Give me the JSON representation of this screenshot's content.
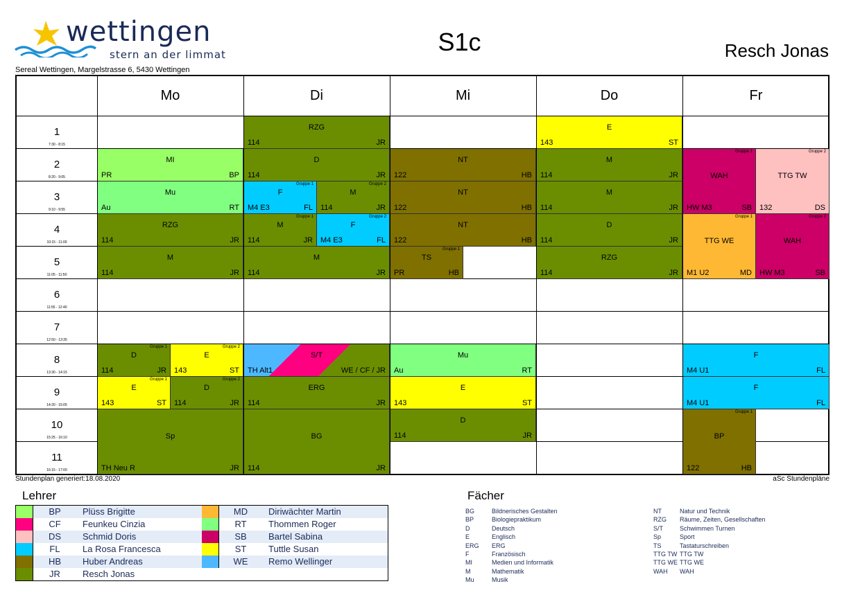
{
  "header": {
    "logo_word": "wettingen",
    "logo_tagline": "stern an der limmat",
    "address": "Sereal Wettingen, Margelstrasse 6, 5430 Wettingen",
    "class_title": "S1c",
    "teacher_name": "Resch Jonas"
  },
  "colors": {
    "dark_green": "#6b8e00",
    "light_green": "#99ff66",
    "mint_green": "#80ff80",
    "olive": "#807000",
    "yellow": "#ffff00",
    "cyan": "#00ccff",
    "magenta": "#cc0066",
    "pink": "#ffc0c0",
    "orange": "#ffb833",
    "sky": "#4db8ff"
  },
  "days": [
    "Mo",
    "Di",
    "Mi",
    "Do",
    "Fr"
  ],
  "periods": [
    {
      "num": "1",
      "time": "7:30 - 8:15"
    },
    {
      "num": "2",
      "time": "8:20 - 9:05"
    },
    {
      "num": "3",
      "time": "9:10 - 9:55"
    },
    {
      "num": "4",
      "time": "10:15 - 11:00"
    },
    {
      "num": "5",
      "time": "11:05 - 11:50"
    },
    {
      "num": "6",
      "time": "11:55 - 12:40"
    },
    {
      "num": "7",
      "time": "12:50 - 13:35"
    },
    {
      "num": "8",
      "time": "13:30 - 14:15"
    },
    {
      "num": "9",
      "time": "14:20 - 15:05"
    },
    {
      "num": "10",
      "time": "15:25 - 16:10"
    },
    {
      "num": "11",
      "time": "16:15 - 17:00"
    }
  ],
  "lessons": [
    {
      "day": 0,
      "p": 1,
      "span": 1,
      "half": "full",
      "subject": "MI",
      "room": "PR",
      "teacher": "BP",
      "color": "#99ff66",
      "group": ""
    },
    {
      "day": 0,
      "p": 2,
      "span": 1,
      "half": "full",
      "subject": "Mu",
      "room": "Au",
      "teacher": "RT",
      "color": "#80ff80",
      "group": ""
    },
    {
      "day": 0,
      "p": 3,
      "span": 1,
      "half": "full",
      "subject": "RZG",
      "room": "114",
      "teacher": "JR",
      "color": "#6b8e00",
      "group": ""
    },
    {
      "day": 0,
      "p": 4,
      "span": 1,
      "half": "full",
      "subject": "M",
      "room": "114",
      "teacher": "JR",
      "color": "#6b8e00",
      "group": ""
    },
    {
      "day": 0,
      "p": 7,
      "span": 1,
      "half": "left",
      "subject": "D",
      "room": "114",
      "teacher": "JR",
      "color": "#6b8e00",
      "group": "Gruppe 1"
    },
    {
      "day": 0,
      "p": 7,
      "span": 1,
      "half": "right",
      "subject": "E",
      "room": "143",
      "teacher": "ST",
      "color": "#ffff00",
      "group": "Gruppe 2"
    },
    {
      "day": 0,
      "p": 8,
      "span": 1,
      "half": "left",
      "subject": "E",
      "room": "143",
      "teacher": "ST",
      "color": "#ffff00",
      "group": "Gruppe 1"
    },
    {
      "day": 0,
      "p": 8,
      "span": 1,
      "half": "right",
      "subject": "D",
      "room": "114",
      "teacher": "JR",
      "color": "#6b8e00",
      "group": "Gruppe 2"
    },
    {
      "day": 0,
      "p": 9,
      "span": 2,
      "half": "full",
      "subject": "Sp",
      "room": "TH Neu R",
      "teacher": "JR",
      "color": "#6b8e00",
      "group": ""
    },
    {
      "day": 1,
      "p": 0,
      "span": 1,
      "half": "full",
      "subject": "RZG",
      "room": "114",
      "teacher": "JR",
      "color": "#6b8e00",
      "group": ""
    },
    {
      "day": 1,
      "p": 1,
      "span": 1,
      "half": "full",
      "subject": "D",
      "room": "114",
      "teacher": "JR",
      "color": "#6b8e00",
      "group": ""
    },
    {
      "day": 1,
      "p": 2,
      "span": 1,
      "half": "left",
      "subject": "F",
      "room": "M4 E3",
      "teacher": "FL",
      "color": "#00ccff",
      "group": "Gruppe 1"
    },
    {
      "day": 1,
      "p": 2,
      "span": 1,
      "half": "right",
      "subject": "M",
      "room": "114",
      "teacher": "JR",
      "color": "#6b8e00",
      "group": "Gruppe 2"
    },
    {
      "day": 1,
      "p": 3,
      "span": 1,
      "half": "left",
      "subject": "M",
      "room": "114",
      "teacher": "JR",
      "color": "#6b8e00",
      "group": "Gruppe 1"
    },
    {
      "day": 1,
      "p": 3,
      "span": 1,
      "half": "right",
      "subject": "F",
      "room": "M4 E3",
      "teacher": "FL",
      "color": "#00ccff",
      "group": "Gruppe 2"
    },
    {
      "day": 1,
      "p": 4,
      "span": 1,
      "half": "full",
      "subject": "M",
      "room": "114",
      "teacher": "JR",
      "color": "#6b8e00",
      "group": ""
    },
    {
      "day": 1,
      "p": 7,
      "span": 1,
      "half": "full",
      "subject": "S/T",
      "room": "TH Alt1",
      "teacher": "WE / CF / JR",
      "color": "stripe",
      "group": ""
    },
    {
      "day": 1,
      "p": 8,
      "span": 1,
      "half": "full",
      "subject": "ERG",
      "room": "114",
      "teacher": "JR",
      "color": "#6b8e00",
      "group": ""
    },
    {
      "day": 1,
      "p": 9,
      "span": 2,
      "half": "full",
      "subject": "BG",
      "room": "114",
      "teacher": "JR",
      "color": "#6b8e00",
      "group": ""
    },
    {
      "day": 2,
      "p": 1,
      "span": 1,
      "half": "full",
      "subject": "NT",
      "room": "122",
      "teacher": "HB",
      "color": "#807000",
      "group": ""
    },
    {
      "day": 2,
      "p": 2,
      "span": 1,
      "half": "full",
      "subject": "NT",
      "room": "122",
      "teacher": "HB",
      "color": "#807000",
      "group": ""
    },
    {
      "day": 2,
      "p": 3,
      "span": 1,
      "half": "full",
      "subject": "NT",
      "room": "122",
      "teacher": "HB",
      "color": "#807000",
      "group": ""
    },
    {
      "day": 2,
      "p": 4,
      "span": 1,
      "half": "left",
      "subject": "TS",
      "room": "PR",
      "teacher": "HB",
      "color": "#807000",
      "group": "Gruppe 1"
    },
    {
      "day": 2,
      "p": 7,
      "span": 1,
      "half": "full",
      "subject": "Mu",
      "room": "Au",
      "teacher": "RT",
      "color": "#80ff80",
      "group": ""
    },
    {
      "day": 2,
      "p": 8,
      "span": 1,
      "half": "full",
      "subject": "E",
      "room": "143",
      "teacher": "ST",
      "color": "#ffff00",
      "group": ""
    },
    {
      "day": 2,
      "p": 9,
      "span": 1,
      "half": "full",
      "subject": "D",
      "room": "114",
      "teacher": "JR",
      "color": "#6b8e00",
      "group": ""
    },
    {
      "day": 3,
      "p": 0,
      "span": 1,
      "half": "full",
      "subject": "E",
      "room": "143",
      "teacher": "ST",
      "color": "#ffff00",
      "group": ""
    },
    {
      "day": 3,
      "p": 1,
      "span": 1,
      "half": "full",
      "subject": "M",
      "room": "114",
      "teacher": "JR",
      "color": "#6b8e00",
      "group": ""
    },
    {
      "day": 3,
      "p": 2,
      "span": 1,
      "half": "full",
      "subject": "M",
      "room": "114",
      "teacher": "JR",
      "color": "#6b8e00",
      "group": ""
    },
    {
      "day": 3,
      "p": 3,
      "span": 1,
      "half": "full",
      "subject": "D",
      "room": "114",
      "teacher": "JR",
      "color": "#6b8e00",
      "group": ""
    },
    {
      "day": 3,
      "p": 4,
      "span": 1,
      "half": "full",
      "subject": "RZG",
      "room": "114",
      "teacher": "JR",
      "color": "#6b8e00",
      "group": ""
    },
    {
      "day": 4,
      "p": 1,
      "span": 2,
      "half": "left",
      "subject": "WAH",
      "room": "HW M3",
      "teacher": "SB",
      "color": "#cc0066",
      "group": "Gruppe 1"
    },
    {
      "day": 4,
      "p": 1,
      "span": 2,
      "half": "right",
      "subject": "TTG TW",
      "room": "132",
      "teacher": "DS",
      "color": "#ffc0c0",
      "group": "Gruppe 2"
    },
    {
      "day": 4,
      "p": 3,
      "span": 2,
      "half": "left",
      "subject": "TTG WE",
      "room": "M1 U2",
      "teacher": "MD",
      "color": "#ffb833",
      "group": "Gruppe 1"
    },
    {
      "day": 4,
      "p": 3,
      "span": 2,
      "half": "right",
      "subject": "WAH",
      "room": "HW M3",
      "teacher": "SB",
      "color": "#cc0066",
      "group": "Gruppe 2"
    },
    {
      "day": 4,
      "p": 7,
      "span": 1,
      "half": "full",
      "subject": "F",
      "room": "M4 U1",
      "teacher": "FL",
      "color": "#00ccff",
      "group": ""
    },
    {
      "day": 4,
      "p": 8,
      "span": 1,
      "half": "full",
      "subject": "F",
      "room": "M4 U1",
      "teacher": "FL",
      "color": "#00ccff",
      "group": ""
    },
    {
      "day": 4,
      "p": 9,
      "span": 2,
      "half": "left",
      "subject": "BP",
      "room": "122",
      "teacher": "HB",
      "color": "#807000",
      "group": "Gruppe 1"
    }
  ],
  "footer": {
    "generated": "Stundenplan generiert:18.08.2020",
    "brand": "aSc Stundenpläne"
  },
  "legend": {
    "title": "Lehrer",
    "teachers": [
      {
        "code": "BP",
        "name": "Plüss Brigitte",
        "color": "#99ff66"
      },
      {
        "code": "CF",
        "name": "Feunkeu Cinzia",
        "color": "#ff0080"
      },
      {
        "code": "DS",
        "name": "Schmid Doris",
        "color": "#ffc0c0"
      },
      {
        "code": "FL",
        "name": "La Rosa Francesca",
        "color": "#00ccff"
      },
      {
        "code": "HB",
        "name": "Huber Andreas",
        "color": "#807000"
      },
      {
        "code": "JR",
        "name": "Resch Jonas",
        "color": "#6b8e00"
      },
      {
        "code": "MD",
        "name": "Diriwächter Martin",
        "color": "#ffb833"
      },
      {
        "code": "RT",
        "name": "Thommen Roger",
        "color": "#80ff80"
      },
      {
        "code": "SB",
        "name": "Bartel Sabina",
        "color": "#cc0066"
      },
      {
        "code": "ST",
        "name": "Tuttle Susan",
        "color": "#ffff00"
      },
      {
        "code": "WE",
        "name": "Remo Wellinger",
        "color": "#4db8ff"
      }
    ]
  },
  "subjects": {
    "title": "Fächer",
    "items": [
      {
        "code": "BG",
        "name": "Bildnerisches Gestalten"
      },
      {
        "code": "BP",
        "name": "Biologiepraktikum"
      },
      {
        "code": "D",
        "name": "Deutsch"
      },
      {
        "code": "E",
        "name": "Englisch"
      },
      {
        "code": "ERG",
        "name": "ERG"
      },
      {
        "code": "F",
        "name": "Französisch"
      },
      {
        "code": "MI",
        "name": "Medien und Informatik"
      },
      {
        "code": "M",
        "name": "Mathematik"
      },
      {
        "code": "Mu",
        "name": "Musik"
      },
      {
        "code": "NT",
        "name": "Natur und  Technik"
      },
      {
        "code": "RZG",
        "name": "Räume, Zeiten, Gesellschaften"
      },
      {
        "code": "S/T",
        "name": "Schwimmen Turnen"
      },
      {
        "code": "Sp",
        "name": "Sport"
      },
      {
        "code": "TS",
        "name": "Tastaturschreiben"
      },
      {
        "code": "TTG TW",
        "name": "TTG TW"
      },
      {
        "code": "TTG WE",
        "name": "TTG WE"
      },
      {
        "code": "WAH",
        "name": "WAH"
      }
    ]
  }
}
